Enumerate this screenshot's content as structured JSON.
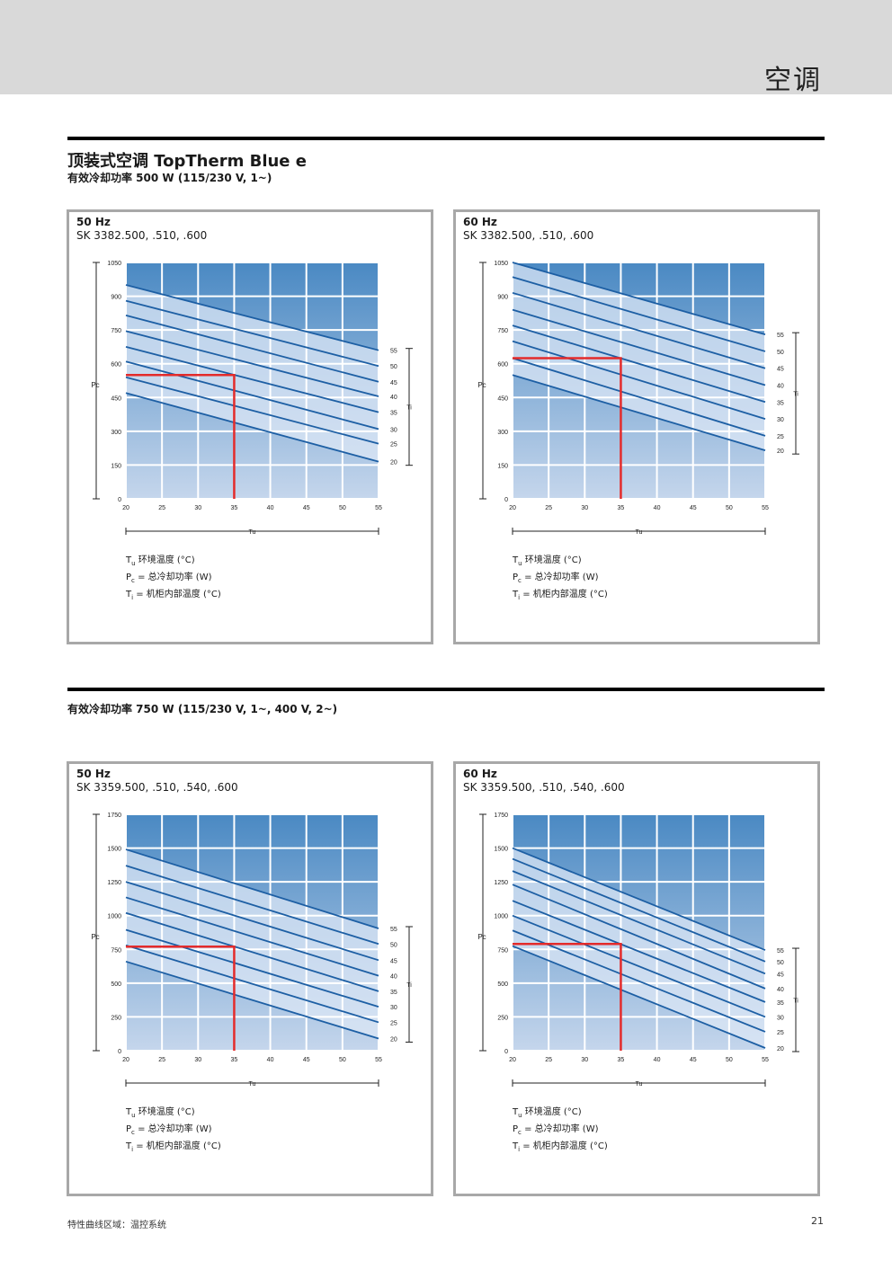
{
  "header": {
    "section_title": "空调"
  },
  "title": "顶装式空调 TopTherm Blue e",
  "subtitle_1": "有效冷却功率 500 W (115/230 V, 1~)",
  "subtitle_2": "有效冷却功率 750 W (115/230 V, 1~, 400 V, 2~)",
  "legend": {
    "tu_symbol": "T",
    "tu_sub": "u",
    "tu_text": " 环境温度 (°C)",
    "pc_symbol": "P",
    "pc_sub": "c",
    "pc_text": " = 总冷却功率 (W)",
    "ti_symbol": "T",
    "ti_sub": "i",
    "ti_text": "  = 机柜内部温度 (°C)"
  },
  "footer": {
    "text": "特性曲线区域：温控系统",
    "page": "21"
  },
  "colors": {
    "grad_top": "#4a89c3",
    "grad_bottom": "#c5d6ec",
    "band": "#dce7f5",
    "line": "#1d5fa4",
    "marker": "#e32b2b"
  },
  "chart_data": [
    {
      "type": "line",
      "title": "50 Hz",
      "subtitle": "SK 3382.500, .510, .600",
      "xlabel": "Tu",
      "ylabel": "Pc",
      "right_axis_label": "Ti",
      "x_ticks": [
        20,
        25,
        30,
        35,
        40,
        45,
        50,
        55
      ],
      "y_ticks": [
        0,
        150,
        300,
        450,
        600,
        750,
        900,
        1050
      ],
      "xlim": [
        20,
        55
      ],
      "ylim": [
        0,
        1050
      ],
      "ti_labels": [
        "55",
        "50",
        "45",
        "40",
        "35",
        "30",
        "25",
        "20"
      ],
      "series": [
        {
          "name": "55",
          "x": [
            20,
            55
          ],
          "y": [
            950,
            660
          ]
        },
        {
          "name": "50",
          "x": [
            20,
            55
          ],
          "y": [
            880,
            590
          ]
        },
        {
          "name": "45",
          "x": [
            20,
            55
          ],
          "y": [
            815,
            520
          ]
        },
        {
          "name": "40",
          "x": [
            20,
            55
          ],
          "y": [
            745,
            455
          ]
        },
        {
          "name": "35",
          "x": [
            20,
            55
          ],
          "y": [
            675,
            385
          ]
        },
        {
          "name": "30",
          "x": [
            20,
            55
          ],
          "y": [
            610,
            310
          ]
        },
        {
          "name": "25",
          "x": [
            20,
            55
          ],
          "y": [
            540,
            245
          ]
        },
        {
          "name": "20",
          "x": [
            20,
            55
          ],
          "y": [
            470,
            165
          ]
        }
      ],
      "marker": {
        "x": 35,
        "y": 550
      }
    },
    {
      "type": "line",
      "title": "60 Hz",
      "subtitle": "SK 3382.500, .510, .600",
      "xlabel": "Tu",
      "ylabel": "Pc",
      "right_axis_label": "Ti",
      "x_ticks": [
        20,
        25,
        30,
        35,
        40,
        45,
        50,
        55
      ],
      "y_ticks": [
        0,
        150,
        300,
        450,
        600,
        750,
        900,
        1050
      ],
      "xlim": [
        20,
        55
      ],
      "ylim": [
        0,
        1050
      ],
      "ti_labels": [
        "55",
        "50",
        "45",
        "40",
        "35",
        "30",
        "25",
        "20"
      ],
      "series": [
        {
          "name": "55",
          "x": [
            20,
            55
          ],
          "y": [
            1050,
            730
          ]
        },
        {
          "name": "50",
          "x": [
            20,
            55
          ],
          "y": [
            985,
            655
          ]
        },
        {
          "name": "45",
          "x": [
            20,
            55
          ],
          "y": [
            915,
            580
          ]
        },
        {
          "name": "40",
          "x": [
            20,
            55
          ],
          "y": [
            840,
            505
          ]
        },
        {
          "name": "35",
          "x": [
            20,
            55
          ],
          "y": [
            770,
            430
          ]
        },
        {
          "name": "30",
          "x": [
            20,
            55
          ],
          "y": [
            700,
            355
          ]
        },
        {
          "name": "25",
          "x": [
            20,
            55
          ],
          "y": [
            625,
            280
          ]
        },
        {
          "name": "20",
          "x": [
            20,
            55
          ],
          "y": [
            550,
            215
          ]
        }
      ],
      "marker": {
        "x": 35,
        "y": 625
      }
    },
    {
      "type": "line",
      "title": "50 Hz",
      "subtitle": "SK 3359.500, .510, .540, .600",
      "xlabel": "Tu",
      "ylabel": "Pc",
      "right_axis_label": "Ti",
      "x_ticks": [
        20,
        25,
        30,
        35,
        40,
        45,
        50,
        55
      ],
      "y_ticks": [
        0,
        250,
        500,
        750,
        1000,
        1250,
        1500,
        1750
      ],
      "xlim": [
        20,
        55
      ],
      "ylim": [
        0,
        1750
      ],
      "ti_labels": [
        "55",
        "50",
        "45",
        "40",
        "35",
        "30",
        "25",
        "20"
      ],
      "series": [
        {
          "name": "55",
          "x": [
            20,
            55
          ],
          "y": [
            1490,
            905
          ]
        },
        {
          "name": "50",
          "x": [
            20,
            55
          ],
          "y": [
            1370,
            790
          ]
        },
        {
          "name": "45",
          "x": [
            20,
            55
          ],
          "y": [
            1250,
            670
          ]
        },
        {
          "name": "40",
          "x": [
            20,
            55
          ],
          "y": [
            1135,
            555
          ]
        },
        {
          "name": "35",
          "x": [
            20,
            55
          ],
          "y": [
            1020,
            440
          ]
        },
        {
          "name": "30",
          "x": [
            20,
            55
          ],
          "y": [
            895,
            325
          ]
        },
        {
          "name": "25",
          "x": [
            20,
            55
          ],
          "y": [
            780,
            210
          ]
        },
        {
          "name": "20",
          "x": [
            20,
            55
          ],
          "y": [
            660,
            90
          ]
        }
      ],
      "marker": {
        "x": 35,
        "y": 770
      }
    },
    {
      "type": "line",
      "title": "60 Hz",
      "subtitle": "SK 3359.500, .510, .540, .600",
      "xlabel": "Tu",
      "ylabel": "Pc",
      "right_axis_label": "Ti",
      "x_ticks": [
        20,
        25,
        30,
        35,
        40,
        45,
        50,
        55
      ],
      "y_ticks": [
        0,
        250,
        500,
        750,
        1000,
        1250,
        1500,
        1750
      ],
      "xlim": [
        20,
        55
      ],
      "ylim": [
        0,
        1750
      ],
      "ti_labels": [
        "55",
        "50",
        "45",
        "40",
        "35",
        "30",
        "25",
        "20"
      ],
      "series": [
        {
          "name": "55",
          "x": [
            20,
            55
          ],
          "y": [
            1500,
            745
          ]
        },
        {
          "name": "50",
          "x": [
            20,
            55
          ],
          "y": [
            1420,
            660
          ]
        },
        {
          "name": "45",
          "x": [
            20,
            55
          ],
          "y": [
            1330,
            570
          ]
        },
        {
          "name": "40",
          "x": [
            20,
            55
          ],
          "y": [
            1230,
            460
          ]
        },
        {
          "name": "35",
          "x": [
            20,
            55
          ],
          "y": [
            1110,
            360
          ]
        },
        {
          "name": "30",
          "x": [
            20,
            55
          ],
          "y": [
            1000,
            250
          ]
        },
        {
          "name": "25",
          "x": [
            20,
            55
          ],
          "y": [
            890,
            140
          ]
        },
        {
          "name": "20",
          "x": [
            20,
            55
          ],
          "y": [
            775,
            20
          ]
        }
      ],
      "marker": {
        "x": 35,
        "y": 790
      }
    }
  ]
}
